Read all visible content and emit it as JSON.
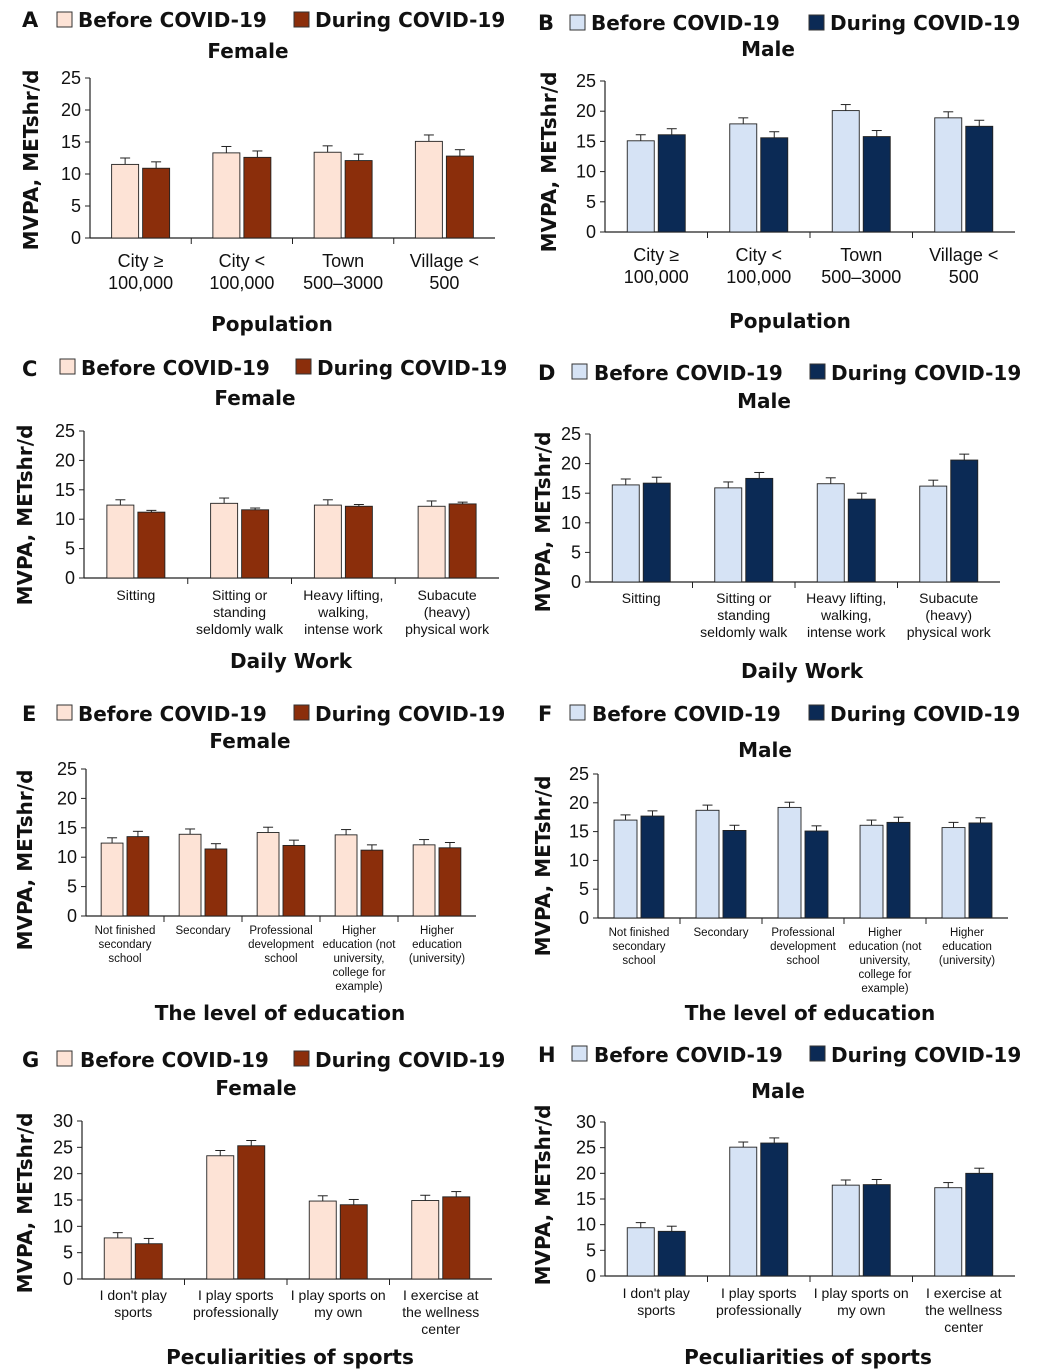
{
  "chart_data": [
    {
      "panel": "A",
      "type": "bar",
      "title": "Female",
      "legend": [
        "Before COVID-19",
        "During COVID-19"
      ],
      "ylabel": "MVPA, METshr/d",
      "xlabel": "Population",
      "ylim": [
        0,
        25
      ],
      "yticks": [
        0,
        5,
        10,
        15,
        20,
        25
      ],
      "categories": [
        [
          "City ≥",
          "100,000"
        ],
        [
          "City <",
          "100,000"
        ],
        [
          "Town",
          "500–3000"
        ],
        [
          "Village <",
          "500"
        ]
      ],
      "series": [
        {
          "name": "Before COVID-19",
          "values": [
            11.5,
            13.3,
            13.4,
            15.1
          ],
          "errors": [
            1.0,
            1.0,
            1.0,
            1.0
          ]
        },
        {
          "name": "During COVID-19",
          "values": [
            10.9,
            12.6,
            12.1,
            12.8
          ],
          "errors": [
            1.0,
            1.0,
            1.0,
            1.0
          ]
        }
      ],
      "colors": [
        "#fde3d6",
        "#8b2e0b"
      ]
    },
    {
      "panel": "B",
      "type": "bar",
      "title": "Male",
      "legend": [
        "Before COVID-19",
        "During COVID-19"
      ],
      "ylabel": "MVPA, METshr/d",
      "xlabel": "Population",
      "ylim": [
        0,
        25
      ],
      "yticks": [
        0,
        5,
        10,
        15,
        20,
        25
      ],
      "categories": [
        [
          "City ≥",
          "100,000"
        ],
        [
          "City <",
          "100,000"
        ],
        [
          "Town",
          "500–3000"
        ],
        [
          "Village <",
          "500"
        ]
      ],
      "series": [
        {
          "name": "Before COVID-19",
          "values": [
            15.1,
            17.9,
            20.1,
            18.9
          ],
          "errors": [
            1.0,
            1.0,
            1.0,
            1.0
          ]
        },
        {
          "name": "During COVID-19",
          "values": [
            16.1,
            15.6,
            15.8,
            17.5
          ],
          "errors": [
            1.0,
            1.0,
            1.0,
            1.0
          ]
        }
      ],
      "colors": [
        "#d6e3f5",
        "#0b2a55"
      ]
    },
    {
      "panel": "C",
      "type": "bar",
      "title": "Female",
      "legend": [
        "Before COVID-19",
        "During COVID-19"
      ],
      "ylabel": "MVPA, METshr/d",
      "xlabel": "Daily Work",
      "ylim": [
        0,
        25
      ],
      "yticks": [
        0,
        5,
        10,
        15,
        20,
        25
      ],
      "categories": [
        [
          "Sitting"
        ],
        [
          "Sitting or",
          "standing",
          "seldomly walk"
        ],
        [
          "Heavy lifting,",
          "walking,",
          "intense work"
        ],
        [
          "Subacute",
          "(heavy)",
          "physical work"
        ]
      ],
      "series": [
        {
          "name": "Before COVID-19",
          "values": [
            12.4,
            12.7,
            12.4,
            12.2
          ],
          "errors": [
            0.9,
            0.9,
            0.9,
            0.9
          ]
        },
        {
          "name": "During COVID-19",
          "values": [
            11.2,
            11.6,
            12.2,
            12.6
          ],
          "errors": [
            0.3,
            0.3,
            0.3,
            0.3
          ]
        }
      ],
      "colors": [
        "#fde3d6",
        "#8b2e0b"
      ]
    },
    {
      "panel": "D",
      "type": "bar",
      "title": "Male",
      "legend": [
        "Before COVID-19",
        "During COVID-19"
      ],
      "ylabel": "MVPA, METshr/d",
      "xlabel": "Daily Work",
      "ylim": [
        0,
        25
      ],
      "yticks": [
        0,
        5,
        10,
        15,
        20,
        25
      ],
      "categories": [
        [
          "Sitting"
        ],
        [
          "Sitting or",
          "standing",
          "seldomly walk"
        ],
        [
          "Heavy lifting,",
          "walking,",
          "intense work"
        ],
        [
          "Subacute",
          "(heavy)",
          "physical work"
        ]
      ],
      "series": [
        {
          "name": "Before COVID-19",
          "values": [
            16.4,
            15.9,
            16.6,
            16.2
          ],
          "errors": [
            1.0,
            1.0,
            1.0,
            1.0
          ]
        },
        {
          "name": "During COVID-19",
          "values": [
            16.7,
            17.5,
            14.0,
            20.6
          ],
          "errors": [
            1.0,
            1.0,
            1.0,
            1.0
          ]
        }
      ],
      "colors": [
        "#d6e3f5",
        "#0b2a55"
      ]
    },
    {
      "panel": "E",
      "type": "bar",
      "title": "Female",
      "legend": [
        "Before COVID-19",
        "During COVID-19"
      ],
      "ylabel": "MVPA, METshr/d",
      "xlabel": "The level of education",
      "ylim": [
        0,
        25
      ],
      "yticks": [
        0,
        5,
        10,
        15,
        20,
        25
      ],
      "categories": [
        [
          "Not finished",
          "secondary",
          "school"
        ],
        [
          "Secondary"
        ],
        [
          "Professional",
          "development",
          "school"
        ],
        [
          "Higher",
          "education (not",
          "university,",
          "college for",
          "example)"
        ],
        [
          "Higher",
          "education",
          "(university)"
        ]
      ],
      "series": [
        {
          "name": "Before COVID-19",
          "values": [
            12.4,
            13.9,
            14.2,
            13.8,
            12.1
          ],
          "errors": [
            0.9,
            0.9,
            0.9,
            0.9,
            0.9
          ]
        },
        {
          "name": "During COVID-19",
          "values": [
            13.5,
            11.4,
            12.0,
            11.2,
            11.6
          ],
          "errors": [
            0.9,
            0.9,
            0.9,
            0.9,
            0.9
          ]
        }
      ],
      "colors": [
        "#fde3d6",
        "#8b2e0b"
      ]
    },
    {
      "panel": "F",
      "type": "bar",
      "title": "Male",
      "legend": [
        "Before COVID-19",
        "During COVID-19"
      ],
      "ylabel": "MVPA, METshr/d",
      "xlabel": "The level of education",
      "ylim": [
        0,
        25
      ],
      "yticks": [
        0,
        5,
        10,
        15,
        20,
        25
      ],
      "categories": [
        [
          "Not finished",
          "secondary",
          "school"
        ],
        [
          "Secondary"
        ],
        [
          "Professional",
          "development",
          "school"
        ],
        [
          "Higher",
          "education (not",
          "university,",
          "college for",
          "example)"
        ],
        [
          "Higher",
          "education",
          "(university)"
        ]
      ],
      "series": [
        {
          "name": "Before COVID-19",
          "values": [
            17.0,
            18.7,
            19.2,
            16.1,
            15.7
          ],
          "errors": [
            0.9,
            0.9,
            0.9,
            0.9,
            0.9
          ]
        },
        {
          "name": "During COVID-19",
          "values": [
            17.7,
            15.2,
            15.1,
            16.6,
            16.5
          ],
          "errors": [
            0.9,
            0.9,
            0.9,
            0.9,
            0.9
          ]
        }
      ],
      "colors": [
        "#d6e3f5",
        "#0b2a55"
      ]
    },
    {
      "panel": "G",
      "type": "bar",
      "title": "Female",
      "legend": [
        "Before COVID-19",
        "During COVID-19"
      ],
      "ylabel": "MVPA, METshr/d",
      "xlabel": "Peculiarities of sports",
      "ylim": [
        0,
        30
      ],
      "yticks": [
        0,
        5,
        10,
        15,
        20,
        25,
        30
      ],
      "categories": [
        [
          "I don't play",
          "sports"
        ],
        [
          "I play sports",
          "professionally"
        ],
        [
          "I play sports on",
          "my own"
        ],
        [
          "I exercise at",
          "the wellness",
          "center"
        ]
      ],
      "series": [
        {
          "name": "Before COVID-19",
          "values": [
            7.8,
            23.4,
            14.8,
            14.9
          ],
          "errors": [
            1.0,
            1.0,
            1.0,
            1.0
          ]
        },
        {
          "name": "During COVID-19",
          "values": [
            6.7,
            25.3,
            14.1,
            15.6
          ],
          "errors": [
            1.0,
            1.0,
            1.0,
            1.0
          ]
        }
      ],
      "colors": [
        "#fde3d6",
        "#8b2e0b"
      ]
    },
    {
      "panel": "H",
      "type": "bar",
      "title": "Male",
      "legend": [
        "Before COVID-19",
        "During COVID-19"
      ],
      "ylabel": "MVPA, METshr/d",
      "xlabel": "Peculiarities of sports",
      "ylim": [
        0,
        30
      ],
      "yticks": [
        0,
        5,
        10,
        15,
        20,
        25,
        30
      ],
      "categories": [
        [
          "I don't play",
          "sports"
        ],
        [
          "I play sports",
          "professionally"
        ],
        [
          "I play sports on",
          "my own"
        ],
        [
          "I exercise at",
          "the wellness",
          "center"
        ]
      ],
      "series": [
        {
          "name": "Before COVID-19",
          "values": [
            9.4,
            25.1,
            17.7,
            17.2
          ],
          "errors": [
            1.0,
            1.0,
            1.0,
            1.0
          ]
        },
        {
          "name": "During COVID-19",
          "values": [
            8.7,
            25.9,
            17.8,
            20.0
          ],
          "errors": [
            1.0,
            1.0,
            1.0,
            1.0
          ]
        }
      ],
      "colors": [
        "#d6e3f5",
        "#0b2a55"
      ]
    }
  ]
}
